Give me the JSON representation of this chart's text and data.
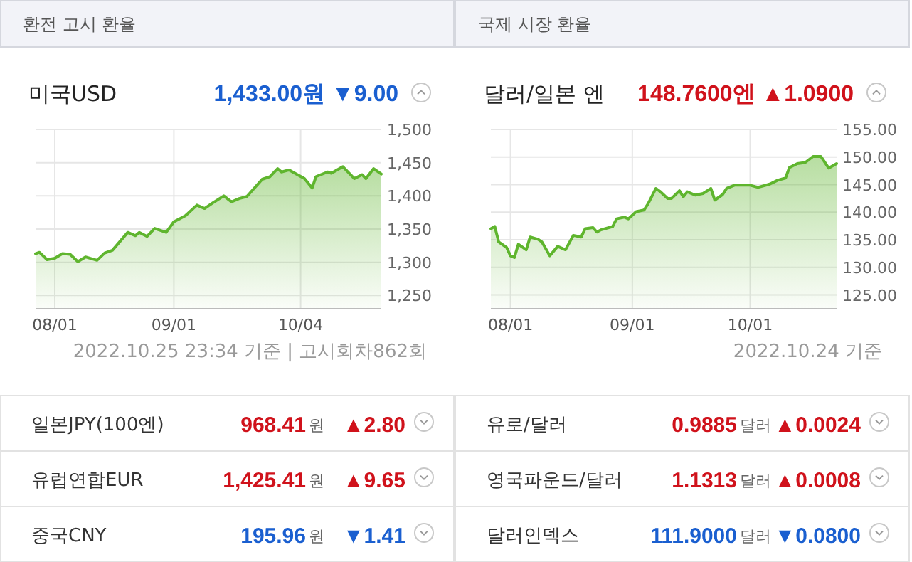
{
  "chart_data": [
    {
      "type": "area",
      "title": "미국USD",
      "subtitle": "1,433.00원 ▼9.00",
      "annotations": [
        "환전 고시 환율",
        "2022.10.25 23:34 기준 | 고시회차862회"
      ],
      "grid": true,
      "x": [
        "2022-07-27",
        "2022-07-28",
        "2022-07-30",
        "2022-08-01",
        "2022-08-03",
        "2022-08-05",
        "2022-08-07",
        "2022-08-09",
        "2022-08-12",
        "2022-08-14",
        "2022-08-16",
        "2022-08-20",
        "2022-08-22",
        "2022-08-23",
        "2022-08-25",
        "2022-08-27",
        "2022-08-30",
        "2022-09-01",
        "2022-09-04",
        "2022-09-07",
        "2022-09-09",
        "2022-09-11",
        "2022-09-14",
        "2022-09-16",
        "2022-09-18",
        "2022-09-20",
        "2022-09-24",
        "2022-09-26",
        "2022-09-28",
        "2022-09-29",
        "2022-10-01",
        "2022-10-05",
        "2022-10-07",
        "2022-10-08",
        "2022-10-11",
        "2022-10-12",
        "2022-10-15",
        "2022-10-18",
        "2022-10-20",
        "2022-10-21",
        "2022-10-23",
        "2022-10-25"
      ],
      "series": [
        {
          "color": "#5fb52e",
          "values": [
            1313,
            1315,
            1304,
            1306,
            1313,
            1312,
            1301,
            1308,
            1303,
            1314,
            1318,
            1345,
            1340,
            1345,
            1339,
            1351,
            1345,
            1361,
            1370,
            1386,
            1381,
            1389,
            1400,
            1391,
            1396,
            1399,
            1425,
            1429,
            1441,
            1436,
            1439,
            1426,
            1412,
            1429,
            1436,
            1434,
            1444,
            1426,
            1432,
            1426,
            1441,
            1433
          ]
        }
      ],
      "xlim": [
        "2022-07-27",
        "2022-10-25"
      ],
      "xticks": [
        {
          "value": "2022-08-01",
          "label": "08/01"
        },
        {
          "value": "2022-09-01",
          "label": "09/01"
        },
        {
          "value": "2022-10-04",
          "label": "10/04"
        }
      ],
      "ylim": [
        1230,
        1500
      ],
      "yticks": [
        {
          "value": 1250,
          "label": "1,250"
        },
        {
          "value": 1300,
          "label": "1,300"
        },
        {
          "value": 1350,
          "label": "1,350"
        },
        {
          "value": 1400,
          "label": "1,400"
        },
        {
          "value": 1450,
          "label": "1,450"
        },
        {
          "value": 1500,
          "label": "1,500"
        }
      ]
    },
    {
      "type": "area",
      "title": "달러/일본 엔",
      "subtitle": "148.7600엔 ▲1.0900",
      "annotations": [
        "국제 시장 환율",
        "2022.10.24 기준"
      ],
      "grid": true,
      "x": [
        "2022-07-27",
        "2022-07-28",
        "2022-07-29",
        "2022-07-31",
        "2022-08-01",
        "2022-08-02",
        "2022-08-03",
        "2022-08-05",
        "2022-08-06",
        "2022-08-08",
        "2022-08-09",
        "2022-08-11",
        "2022-08-13",
        "2022-08-15",
        "2022-08-17",
        "2022-08-19",
        "2022-08-20",
        "2022-08-22",
        "2022-08-23",
        "2022-08-24",
        "2022-08-27",
        "2022-08-28",
        "2022-08-30",
        "2022-08-31",
        "2022-09-02",
        "2022-09-04",
        "2022-09-05",
        "2022-09-07",
        "2022-09-08",
        "2022-09-10",
        "2022-09-11",
        "2022-09-13",
        "2022-09-14",
        "2022-09-15",
        "2022-09-17",
        "2022-09-19",
        "2022-09-21",
        "2022-09-22",
        "2022-09-24",
        "2022-09-25",
        "2022-09-27",
        "2022-10-01",
        "2022-10-03",
        "2022-10-06",
        "2022-10-08",
        "2022-10-10",
        "2022-10-11",
        "2022-10-13",
        "2022-10-15",
        "2022-10-17",
        "2022-10-19",
        "2022-10-21",
        "2022-10-23"
      ],
      "series": [
        {
          "color": "#5fb52e",
          "values": [
            137.0,
            137.4,
            134.6,
            133.6,
            132.1,
            131.8,
            134.2,
            133.2,
            135.5,
            135.1,
            134.6,
            132.1,
            133.8,
            133.2,
            135.8,
            135.5,
            137.0,
            137.2,
            136.4,
            136.8,
            137.4,
            138.8,
            139.1,
            138.8,
            140.1,
            140.4,
            141.5,
            144.3,
            143.8,
            142.5,
            142.5,
            143.9,
            142.8,
            143.7,
            143.1,
            143.4,
            144.3,
            142.2,
            143.2,
            144.3,
            144.9,
            144.9,
            144.5,
            145.1,
            145.8,
            146.2,
            148.1,
            148.8,
            149.0,
            150.1,
            150.1,
            148.0,
            148.8
          ]
        }
      ],
      "xlim": [
        "2022-07-27",
        "2022-10-23"
      ],
      "xticks": [
        {
          "value": "2022-08-01",
          "label": "08/01"
        },
        {
          "value": "2022-09-01",
          "label": "09/01"
        },
        {
          "value": "2022-10-01",
          "label": "10/01"
        }
      ],
      "ylim": [
        122.5,
        155
      ],
      "yticks": [
        {
          "value": 125,
          "label": "125.00"
        },
        {
          "value": 130,
          "label": "130.00"
        },
        {
          "value": 135,
          "label": "135.00"
        },
        {
          "value": 140,
          "label": "140.00"
        },
        {
          "value": 145,
          "label": "145.00"
        },
        {
          "value": 150,
          "label": "150.00"
        },
        {
          "value": 155,
          "label": "155.00"
        }
      ]
    },
    {
      "type": "other",
      "annotations": [
        "일본JPY(100엔)",
        "968.41",
        "원",
        "▲2.80",
        "유럽연합EUR",
        "1,425.41",
        "원",
        "▲9.65",
        "중국CNY",
        "195.96",
        "원",
        "▼1.41",
        "유로/달러",
        "0.9885",
        "달러",
        "▲0.0024",
        "영국파운드/달러",
        "1.1313",
        "달러",
        "▲0.0008",
        "달러인덱스",
        "111.9000",
        "달러",
        "▼0.0800"
      ],
      "colors": [
        "#d0121b",
        "#d0121b",
        "#1a5fd0",
        "#d0121b",
        "#d0121b",
        "#1a5fd0"
      ]
    }
  ]
}
